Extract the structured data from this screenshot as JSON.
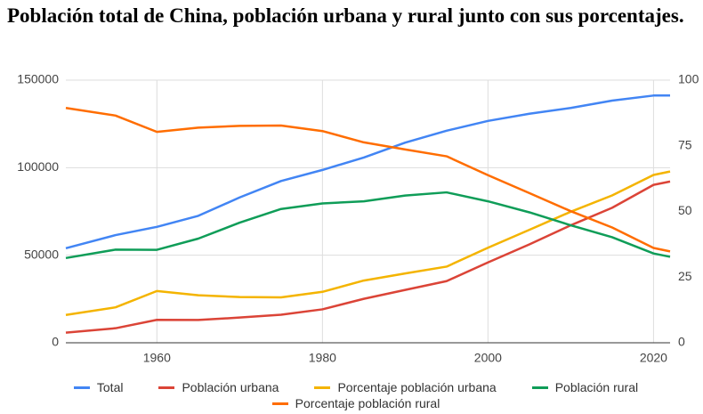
{
  "chart_data": {
    "type": "line",
    "title": "Población total de China, población urbana y rural  junto con sus porcentajes.",
    "x": [
      1949,
      1955,
      1960,
      1965,
      1970,
      1975,
      1980,
      1985,
      1990,
      1995,
      2000,
      2005,
      2010,
      2015,
      2020,
      2022
    ],
    "xlim": [
      1949,
      2022
    ],
    "xticks": [
      1960,
      1980,
      2000,
      2020
    ],
    "ylim": [
      0,
      150000
    ],
    "yticks": [
      0,
      50000,
      100000,
      150000
    ],
    "y2lim": [
      0,
      100
    ],
    "y2ticks": [
      0,
      25,
      50,
      75,
      100
    ],
    "grid": true,
    "series": [
      {
        "name": "Total",
        "color": "#4285f4",
        "values": [
          54000,
          61500,
          66200,
          72500,
          83000,
          92400,
          98700,
          105800,
          114300,
          121100,
          126700,
          130800,
          134100,
          138300,
          141200,
          141200
        ]
      },
      {
        "name": "Población urbana",
        "color": "#db4437",
        "values": [
          5800,
          8300,
          13100,
          13000,
          14400,
          16000,
          19100,
          25100,
          30200,
          35200,
          45900,
          56200,
          67100,
          77100,
          90200,
          92100
        ]
      },
      {
        "name": "Porcentaje población urbana",
        "color": "#f4b400",
        "axis": "y2",
        "values": [
          10.6,
          13.5,
          19.7,
          18.1,
          17.4,
          17.3,
          19.4,
          23.7,
          26.4,
          29.0,
          36.2,
          43.0,
          49.9,
          56.1,
          63.9,
          65.2
        ]
      },
      {
        "name": "Población rural",
        "color": "#0f9d58",
        "values": [
          48400,
          53200,
          53100,
          59500,
          68600,
          76400,
          79600,
          80800,
          84100,
          85900,
          80800,
          74500,
          67100,
          60300,
          51000,
          49100
        ]
      },
      {
        "name": "Porcentaje población rural",
        "color": "#ff6d00",
        "axis": "y2",
        "values": [
          89.4,
          86.5,
          80.3,
          81.9,
          82.6,
          82.7,
          80.6,
          76.3,
          73.6,
          71.0,
          63.8,
          57.0,
          50.1,
          43.9,
          36.1,
          34.8
        ]
      }
    ]
  }
}
